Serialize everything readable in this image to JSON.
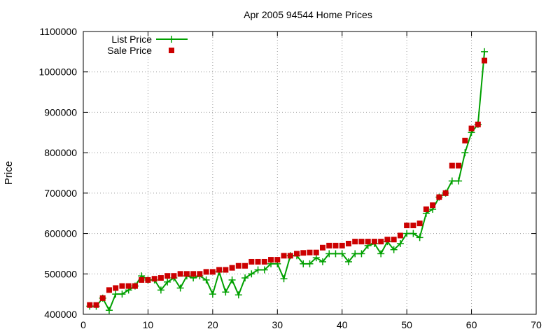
{
  "chart_data": {
    "type": "line",
    "title": "Apr 2005 94544 Home Prices",
    "xlabel": "",
    "ylabel": "Price",
    "xlim": [
      0,
      70
    ],
    "ylim": [
      400000,
      1100000
    ],
    "x_ticks": [
      0,
      10,
      20,
      30,
      40,
      50,
      60,
      70
    ],
    "y_ticks": [
      400000,
      500000,
      600000,
      700000,
      800000,
      900000,
      1000000,
      1100000
    ],
    "grid": true,
    "legend_position": "top-left",
    "series": [
      {
        "name": "List Price",
        "color": "#00a000",
        "marker": "plus",
        "points": [
          [
            1,
            420000
          ],
          [
            2,
            420000
          ],
          [
            3,
            440000
          ],
          [
            4,
            410000
          ],
          [
            5,
            450000
          ],
          [
            6,
            450000
          ],
          [
            7,
            460000
          ],
          [
            8,
            470000
          ],
          [
            9,
            495000
          ],
          [
            10,
            485000
          ],
          [
            11,
            485000
          ],
          [
            12,
            460000
          ],
          [
            13,
            480000
          ],
          [
            14,
            490000
          ],
          [
            15,
            465000
          ],
          [
            16,
            495000
          ],
          [
            17,
            490000
          ],
          [
            18,
            495000
          ],
          [
            19,
            485000
          ],
          [
            20,
            450000
          ],
          [
            21,
            505000
          ],
          [
            22,
            455000
          ],
          [
            23,
            485000
          ],
          [
            24,
            448000
          ],
          [
            25,
            490000
          ],
          [
            26,
            500000
          ],
          [
            27,
            510000
          ],
          [
            28,
            510000
          ],
          [
            29,
            525000
          ],
          [
            30,
            525000
          ],
          [
            31,
            488000
          ],
          [
            32,
            545000
          ],
          [
            33,
            545000
          ],
          [
            34,
            525000
          ],
          [
            35,
            525000
          ],
          [
            36,
            540000
          ],
          [
            37,
            530000
          ],
          [
            38,
            550000
          ],
          [
            39,
            550000
          ],
          [
            40,
            550000
          ],
          [
            41,
            530000
          ],
          [
            42,
            550000
          ],
          [
            43,
            550000
          ],
          [
            44,
            570000
          ],
          [
            45,
            575000
          ],
          [
            46,
            550000
          ],
          [
            47,
            580000
          ],
          [
            48,
            560000
          ],
          [
            49,
            575000
          ],
          [
            50,
            600000
          ],
          [
            51,
            600000
          ],
          [
            52,
            590000
          ],
          [
            53,
            650000
          ],
          [
            54,
            660000
          ],
          [
            55,
            690000
          ],
          [
            56,
            700000
          ],
          [
            57,
            730000
          ],
          [
            58,
            730000
          ],
          [
            59,
            800000
          ],
          [
            60,
            850000
          ],
          [
            61,
            870000
          ],
          [
            62,
            1050000
          ]
        ]
      },
      {
        "name": "Sale Price",
        "color": "#cc0000",
        "marker": "square",
        "points": [
          [
            1,
            423000
          ],
          [
            2,
            423000
          ],
          [
            3,
            440000
          ],
          [
            4,
            460000
          ],
          [
            5,
            465000
          ],
          [
            6,
            470000
          ],
          [
            7,
            470000
          ],
          [
            8,
            470000
          ],
          [
            9,
            485000
          ],
          [
            10,
            485000
          ],
          [
            11,
            488000
          ],
          [
            12,
            490000
          ],
          [
            13,
            495000
          ],
          [
            14,
            495000
          ],
          [
            15,
            500000
          ],
          [
            16,
            500000
          ],
          [
            17,
            500000
          ],
          [
            18,
            500000
          ],
          [
            19,
            505000
          ],
          [
            20,
            505000
          ],
          [
            21,
            510000
          ],
          [
            22,
            510000
          ],
          [
            23,
            515000
          ],
          [
            24,
            520000
          ],
          [
            25,
            520000
          ],
          [
            26,
            530000
          ],
          [
            27,
            530000
          ],
          [
            28,
            530000
          ],
          [
            29,
            535000
          ],
          [
            30,
            535000
          ],
          [
            31,
            545000
          ],
          [
            32,
            545000
          ],
          [
            33,
            550000
          ],
          [
            34,
            552000
          ],
          [
            35,
            553000
          ],
          [
            36,
            553000
          ],
          [
            37,
            565000
          ],
          [
            38,
            570000
          ],
          [
            39,
            570000
          ],
          [
            40,
            570000
          ],
          [
            41,
            575000
          ],
          [
            42,
            580000
          ],
          [
            43,
            580000
          ],
          [
            44,
            580000
          ],
          [
            45,
            580000
          ],
          [
            46,
            580000
          ],
          [
            47,
            585000
          ],
          [
            48,
            585000
          ],
          [
            49,
            595000
          ],
          [
            50,
            620000
          ],
          [
            51,
            620000
          ],
          [
            52,
            625000
          ],
          [
            53,
            660000
          ],
          [
            54,
            670000
          ],
          [
            55,
            690000
          ],
          [
            56,
            700000
          ],
          [
            57,
            768000
          ],
          [
            58,
            768000
          ],
          [
            59,
            830000
          ],
          [
            60,
            860000
          ],
          [
            61,
            870000
          ],
          [
            62,
            1028000
          ]
        ]
      }
    ]
  }
}
